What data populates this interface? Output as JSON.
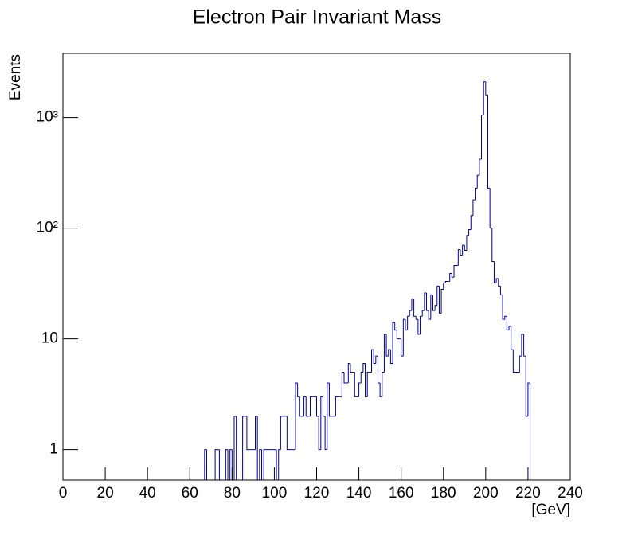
{
  "chart_data": {
    "type": "histogram",
    "title": "Electron Pair Invariant Mass",
    "xlabel": "[GeV]",
    "ylabel": "Events",
    "color": "#000099",
    "log_y": true,
    "bins": [
      0,
      1,
      2,
      3,
      4,
      5,
      6,
      7,
      8,
      9,
      10,
      11,
      12,
      13,
      14,
      15,
      16,
      17,
      18,
      19,
      20,
      21,
      22,
      23,
      24,
      25,
      26,
      27,
      28,
      29,
      30,
      31,
      32,
      33,
      34,
      35,
      36,
      37,
      38,
      39,
      40,
      41,
      42,
      43,
      44,
      45,
      46,
      47,
      48,
      49,
      50,
      51,
      52,
      53,
      54,
      55,
      56,
      57,
      58,
      59,
      60,
      61,
      62,
      63,
      64,
      65,
      66,
      67,
      68,
      69,
      70,
      71,
      72,
      73,
      74,
      75,
      76,
      77,
      78,
      79,
      80,
      81,
      82,
      83,
      84,
      85,
      86,
      87,
      88,
      89,
      90,
      91,
      92,
      93,
      94,
      95,
      96,
      97,
      98,
      99,
      100,
      101,
      102,
      103,
      104,
      105,
      106,
      107,
      108,
      109,
      110,
      111,
      112,
      113,
      114,
      115,
      116,
      117,
      118,
      119,
      120,
      121,
      122,
      123,
      124,
      125,
      126,
      127,
      128,
      129,
      130,
      131,
      132,
      133,
      134,
      135,
      136,
      137,
      138,
      139,
      140,
      141,
      142,
      143,
      144,
      145,
      146,
      147,
      148,
      149,
      150,
      151,
      152,
      153,
      154,
      155,
      156,
      157,
      158,
      159,
      160,
      161,
      162,
      163,
      164,
      165,
      166,
      167,
      168,
      169,
      170,
      171,
      172,
      173,
      174,
      175,
      176,
      177,
      178,
      179,
      180,
      181,
      182,
      183,
      184,
      185,
      186,
      187,
      188,
      189,
      190,
      191,
      192,
      193,
      194,
      195,
      196,
      197,
      198,
      199,
      200,
      201,
      202,
      203,
      204,
      205,
      206,
      207,
      208,
      209,
      210,
      211,
      212,
      213,
      214,
      215,
      216,
      217,
      218,
      219,
      220,
      221,
      222,
      223,
      224,
      225,
      226,
      227,
      228,
      229,
      230,
      231,
      232,
      233,
      234,
      235,
      236,
      237,
      238,
      239,
      240
    ],
    "values": [
      0,
      0,
      0,
      0,
      0,
      0,
      0,
      0,
      0,
      0,
      0,
      0,
      0,
      0,
      0,
      0,
      0,
      0,
      0,
      0,
      0,
      0,
      0,
      0,
      0,
      0,
      0,
      0,
      0,
      0,
      0,
      0,
      0,
      0,
      0,
      0,
      0,
      0,
      0,
      0,
      0,
      0,
      0,
      0,
      0,
      0,
      0,
      0,
      0,
      0,
      0,
      0,
      0,
      0,
      0,
      0,
      0,
      0,
      0,
      0,
      0,
      0,
      0,
      0,
      0,
      0,
      0,
      1,
      0,
      0,
      0,
      0,
      1,
      1,
      0,
      0,
      0,
      1,
      0,
      1,
      0,
      2,
      0,
      0,
      0,
      2,
      2,
      1,
      1,
      1,
      1,
      2,
      0,
      1,
      0,
      1,
      1,
      1,
      1,
      1,
      1,
      0,
      1,
      2,
      2,
      2,
      1,
      1,
      1,
      1,
      4,
      3,
      2,
      2,
      3,
      2,
      2,
      3,
      3,
      3,
      2,
      1,
      3,
      2,
      1,
      4,
      2,
      2,
      2,
      3,
      3,
      3,
      5,
      4,
      4,
      6,
      5,
      5,
      3,
      3,
      4,
      5,
      6,
      3,
      5,
      5,
      8,
      6,
      7,
      4,
      3,
      5,
      11,
      7,
      8,
      6,
      14,
      12,
      10,
      10,
      7,
      15,
      12,
      16,
      18,
      23,
      16,
      15,
      11,
      16,
      18,
      26,
      18,
      15,
      25,
      18,
      20,
      30,
      17,
      28,
      32,
      33,
      33,
      39,
      36,
      46,
      46,
      64,
      57,
      70,
      63,
      86,
      97,
      130,
      180,
      230,
      300,
      420,
      1050,
      2100,
      1600,
      230,
      100,
      50,
      32,
      35,
      30,
      25,
      15,
      16,
      12,
      13,
      8,
      5,
      5,
      5,
      7,
      11,
      7,
      2,
      4,
      0,
      0,
      0,
      0,
      0,
      0,
      0,
      0,
      0,
      0,
      0,
      0,
      0,
      0,
      0,
      0,
      0,
      0,
      0
    ],
    "xlim": [
      0,
      240
    ],
    "xticks": [
      0,
      20,
      40,
      60,
      80,
      100,
      120,
      140,
      160,
      180,
      200,
      220,
      240
    ],
    "ylim": [
      0.53,
      3800
    ],
    "yticks": [
      1,
      10,
      {
        "value": 100,
        "label": "10²"
      },
      {
        "value": 1000,
        "label": "10³"
      }
    ]
  }
}
